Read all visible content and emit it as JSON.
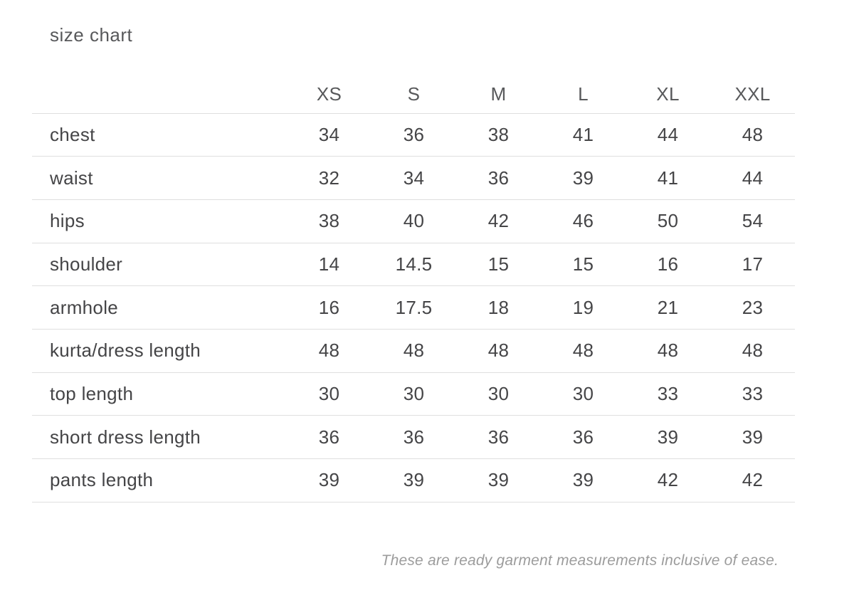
{
  "page": {
    "title": "size chart",
    "footnote": "These are ready garment measurements inclusive of ease."
  },
  "chart_data": {
    "type": "table",
    "title": "size chart",
    "columns": [
      "XS",
      "S",
      "M",
      "L",
      "XL",
      "XXL"
    ],
    "rows": [
      {
        "label": "chest",
        "values": [
          "34",
          "36",
          "38",
          "41",
          "44",
          "48"
        ]
      },
      {
        "label": "waist",
        "values": [
          "32",
          "34",
          "36",
          "39",
          "41",
          "44"
        ]
      },
      {
        "label": "hips",
        "values": [
          "38",
          "40",
          "42",
          "46",
          "50",
          "54"
        ]
      },
      {
        "label": "shoulder",
        "values": [
          "14",
          "14.5",
          "15",
          "15",
          "16",
          "17"
        ]
      },
      {
        "label": "armhole",
        "values": [
          "16",
          "17.5",
          "18",
          "19",
          "21",
          "23"
        ]
      },
      {
        "label": "kurta/dress length",
        "values": [
          "48",
          "48",
          "48",
          "48",
          "48",
          "48"
        ]
      },
      {
        "label": "top length",
        "values": [
          "30",
          "30",
          "30",
          "30",
          "33",
          "33"
        ]
      },
      {
        "label": "short dress length",
        "values": [
          "36",
          "36",
          "36",
          "36",
          "39",
          "39"
        ]
      },
      {
        "label": "pants length",
        "values": [
          "39",
          "39",
          "39",
          "39",
          "42",
          "42"
        ]
      }
    ],
    "footnote": "These are ready garment measurements inclusive of ease."
  },
  "colors": {
    "text": "#454547",
    "heading": "#58595b",
    "border": "#dfdfdf",
    "footnote": "#9c9c9c",
    "background": "#ffffff"
  }
}
